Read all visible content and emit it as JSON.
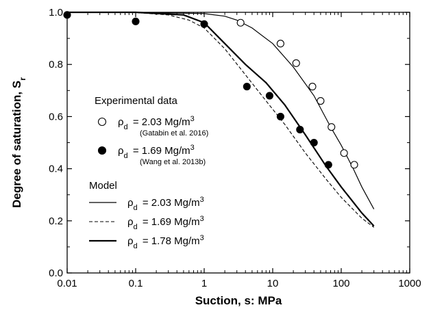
{
  "chart_data": {
    "type": "scatter",
    "title": "",
    "xlabel": "Suction, s: MPa",
    "ylabel": "Degree of saturation, S",
    "ylabel_sub": "r",
    "x_scale": "log",
    "xlim": [
      0.01,
      1000
    ],
    "ylim": [
      0.0,
      1.0
    ],
    "x_ticks": [
      0.01,
      0.1,
      1,
      10,
      100,
      1000
    ],
    "x_tick_labels": [
      "0.01",
      "0.1",
      "1",
      "10",
      "100",
      "1000"
    ],
    "y_ticks": [
      0.0,
      0.2,
      0.4,
      0.6,
      0.8,
      1.0
    ],
    "y_tick_labels": [
      "0.0",
      "0.2",
      "0.4",
      "0.6",
      "0.8",
      "1.0"
    ],
    "grid": false,
    "legend": {
      "position": "left-middle",
      "experimental_heading": "Experimental data",
      "model_heading": "Model",
      "rho_symbol": "ρ",
      "rho_sub": "d",
      "unit_base": "Mg/m",
      "unit_sup": "3"
    },
    "series": [
      {
        "kind": "points-open",
        "label_value": "= 2.03",
        "source": "(Gatabin et al. 2016)",
        "x": [
          3.4,
          13,
          22,
          38,
          50,
          72,
          110,
          155
        ],
        "y": [
          0.96,
          0.88,
          0.805,
          0.715,
          0.66,
          0.56,
          0.46,
          0.415
        ]
      },
      {
        "kind": "points-filled",
        "label_value": "= 1.69",
        "source": "(Wang et al. 2013b)",
        "x": [
          0.01,
          0.1,
          1,
          4.2,
          9,
          13,
          25,
          40,
          65
        ],
        "y": [
          0.99,
          0.965,
          0.955,
          0.715,
          0.68,
          0.6,
          0.55,
          0.5,
          0.415
        ]
      },
      {
        "kind": "line-thin",
        "label_value": "= 2.03",
        "x": [
          0.01,
          0.1,
          1,
          2,
          3,
          5,
          10,
          20,
          40,
          70,
          100,
          150,
          200,
          300
        ],
        "y": [
          1.0,
          1.0,
          0.995,
          0.985,
          0.97,
          0.94,
          0.88,
          0.79,
          0.68,
          0.56,
          0.49,
          0.4,
          0.33,
          0.245
        ]
      },
      {
        "kind": "line-dashed",
        "label_value": "= 1.69",
        "x": [
          0.01,
          0.1,
          0.3,
          0.6,
          1,
          2,
          4,
          8,
          15,
          30,
          60,
          100,
          200,
          300
        ],
        "y": [
          1.0,
          0.999,
          0.99,
          0.97,
          0.94,
          0.86,
          0.76,
          0.66,
          0.57,
          0.46,
          0.36,
          0.29,
          0.21,
          0.175
        ]
      },
      {
        "kind": "line-thick",
        "label_value": "= 1.78",
        "x": [
          0.01,
          0.1,
          0.5,
          1,
          2,
          4,
          8,
          15,
          30,
          60,
          100,
          200,
          300
        ],
        "y": [
          1.0,
          1.0,
          0.99,
          0.96,
          0.88,
          0.8,
          0.73,
          0.645,
          0.53,
          0.41,
          0.33,
          0.23,
          0.18
        ]
      }
    ]
  }
}
